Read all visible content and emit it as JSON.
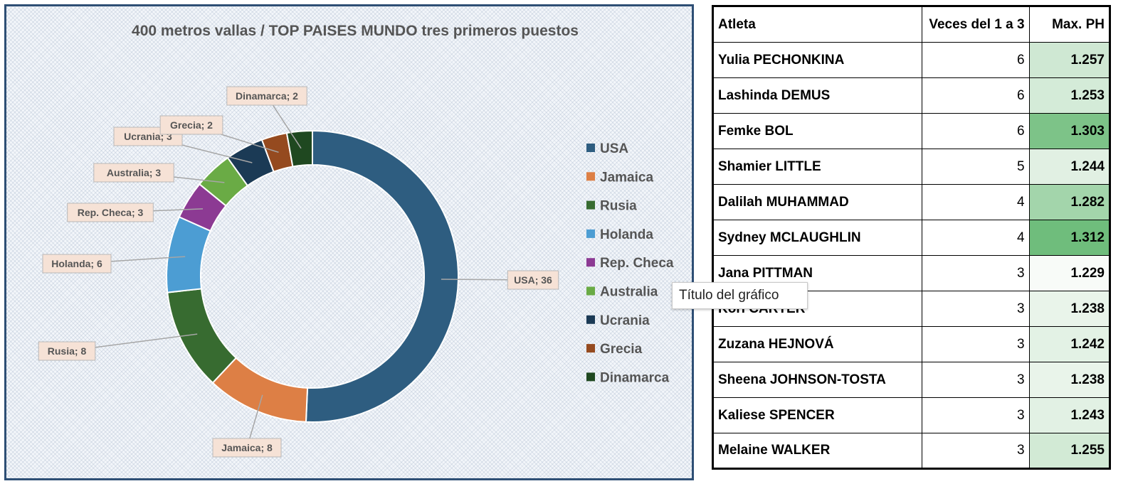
{
  "chart_data": {
    "type": "donut",
    "title": "400 metros vallas / TOP PAISES MUNDO tres primeros puestos",
    "categories": [
      "USA",
      "Jamaica",
      "Rusia",
      "Holanda",
      "Rep. Checa",
      "Australia",
      "Ucrania",
      "Grecia",
      "Dinamarca"
    ],
    "values": [
      36,
      8,
      8,
      6,
      3,
      3,
      3,
      2,
      2
    ],
    "colors": [
      "#2e5d80",
      "#dd7f45",
      "#376b30",
      "#4c9dd3",
      "#8c3a93",
      "#6aab45",
      "#1b3a55",
      "#954a1f",
      "#1f4820"
    ],
    "data_labels": [
      "USA; 36",
      "Jamaica; 8",
      "Rusia; 8",
      "Holanda; 6",
      "Rep. Checa; 3",
      "Australia; 3",
      "Ucrania; 3",
      "Grecia; 2",
      "Dinamarca; 2"
    ],
    "legend": [
      "USA",
      "Jamaica",
      "Rusia",
      "Holanda",
      "Rep. Checa",
      "Australia",
      "Ucrania",
      "Grecia",
      "Dinamarca"
    ],
    "legend_position": "right"
  },
  "tooltip": "Título del gráfico",
  "table": {
    "headers": [
      "Atleta",
      "Veces del 1 a 3",
      "Max. PH"
    ],
    "rows": [
      {
        "name": "Yulia PECHONKINA",
        "times": "6",
        "max": "1.257",
        "level": 0.3
      },
      {
        "name": "Lashinda DEMUS",
        "times": "6",
        "max": "1.253",
        "level": 0.26
      },
      {
        "name": "Femke BOL",
        "times": "6",
        "max": "1.303",
        "level": 0.9
      },
      {
        "name": "Shamier LITTLE",
        "times": "5",
        "max": "1.244",
        "level": 0.17
      },
      {
        "name": "Dalilah MUHAMMAD",
        "times": "4",
        "max": "1.282",
        "level": 0.62
      },
      {
        "name": "Sydney MCLAUGHLIN",
        "times": "4",
        "max": "1.312",
        "level": 1.0
      },
      {
        "name": "Jana PITTMAN",
        "times": "3",
        "max": "1.229",
        "level": 0.0
      },
      {
        "name": "Kori CARTER",
        "times": "3",
        "max": "1.238",
        "level": 0.11
      },
      {
        "name": "Zuzana HEJNOVÁ",
        "times": "3",
        "max": "1.242",
        "level": 0.15
      },
      {
        "name": "Sheena JOHNSON-TOSTA",
        "times": "3",
        "max": "1.238",
        "level": 0.11
      },
      {
        "name": "Kaliese SPENCER",
        "times": "3",
        "max": "1.243",
        "level": 0.16
      },
      {
        "name": "Melaine WALKER",
        "times": "3",
        "max": "1.255",
        "level": 0.28
      }
    ],
    "scale_colors": {
      "low": "#f8fbf8",
      "high": "#6fbd7c"
    }
  }
}
